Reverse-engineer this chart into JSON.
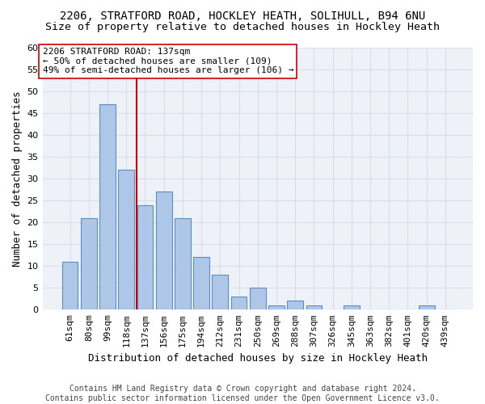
{
  "title1": "2206, STRATFORD ROAD, HOCKLEY HEATH, SOLIHULL, B94 6NU",
  "title2": "Size of property relative to detached houses in Hockley Heath",
  "xlabel": "Distribution of detached houses by size in Hockley Heath",
  "ylabel": "Number of detached properties",
  "categories": [
    "61sqm",
    "80sqm",
    "99sqm",
    "118sqm",
    "137sqm",
    "156sqm",
    "175sqm",
    "194sqm",
    "212sqm",
    "231sqm",
    "250sqm",
    "269sqm",
    "288sqm",
    "307sqm",
    "326sqm",
    "345sqm",
    "363sqm",
    "382sqm",
    "401sqm",
    "420sqm",
    "439sqm"
  ],
  "values": [
    11,
    21,
    47,
    32,
    24,
    27,
    21,
    12,
    8,
    3,
    5,
    1,
    2,
    1,
    0,
    1,
    0,
    0,
    0,
    1,
    0
  ],
  "bar_color": "#aec6e8",
  "bar_edge_color": "#5a8fc2",
  "vline_x_index": 4,
  "vline_color": "#cc0000",
  "annotation_text": "2206 STRATFORD ROAD: 137sqm\n← 50% of detached houses are smaller (109)\n49% of semi-detached houses are larger (106) →",
  "annotation_box_color": "#ffffff",
  "annotation_box_edge_color": "#cc0000",
  "ylim": [
    0,
    60
  ],
  "yticks": [
    0,
    5,
    10,
    15,
    20,
    25,
    30,
    35,
    40,
    45,
    50,
    55,
    60
  ],
  "footer": "Contains HM Land Registry data © Crown copyright and database right 2024.\nContains public sector information licensed under the Open Government Licence v3.0.",
  "bg_color": "#eef2f8",
  "grid_color": "#d8dde8",
  "title_fontsize": 10,
  "subtitle_fontsize": 9.5,
  "axis_label_fontsize": 9,
  "tick_fontsize": 8,
  "annotation_fontsize": 8,
  "footer_fontsize": 7
}
